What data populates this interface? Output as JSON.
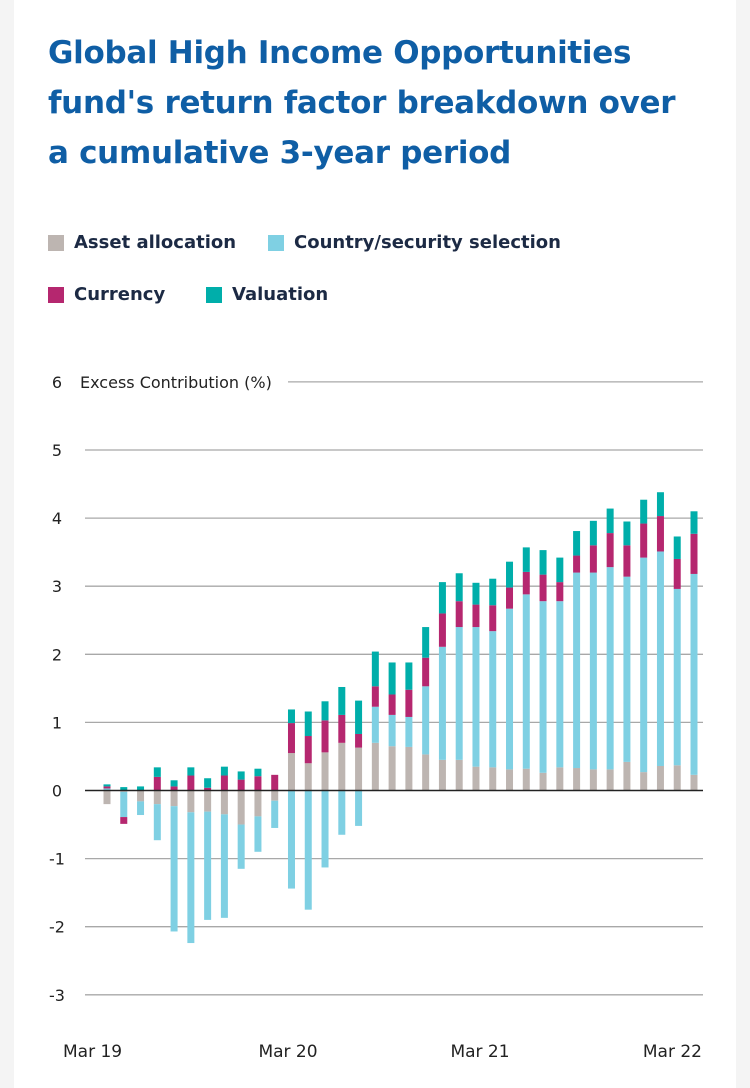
{
  "title": "Global High Income Opportunities fund's return factor breakdown over a cumulative 3-year period",
  "colors": {
    "title": "#0f5ea5",
    "asset_allocation": "#bdb5b1",
    "country_security_selection": "#7fd0e3",
    "currency": "#b5276f",
    "valuation": "#00aeaa"
  },
  "chart_data": {
    "type": "bar",
    "stacked": true,
    "title": "Global High Income Opportunities fund's return factor breakdown over a cumulative 3-year period",
    "ylabel": "Excess Contribution (%)",
    "ylim": [
      -3,
      6
    ],
    "yticks": [
      "6",
      "5",
      "4",
      "3",
      "2",
      "1",
      "0",
      "-1",
      "-2",
      "-3"
    ],
    "xticks": [
      "Mar 19",
      "Mar 20",
      "Mar 21",
      "Mar 22"
    ],
    "grid": true,
    "legend_placement": "top",
    "series": [
      {
        "name": "Asset allocation",
        "values": [
          -0.2,
          -0.02,
          -0.16,
          -0.2,
          -0.23,
          -0.32,
          -0.31,
          -0.35,
          -0.5,
          -0.38,
          -0.15,
          0.55,
          0.4,
          0.56,
          0.7,
          0.63,
          0.7,
          0.65,
          0.64,
          0.53,
          0.45,
          0.45,
          0.35,
          0.34,
          0.31,
          0.32,
          0.26,
          0.34,
          0.33,
          0.31,
          0.31,
          0.42,
          0.27,
          0.36,
          0.37,
          0.23
        ]
      },
      {
        "name": "Country/security selection",
        "values": [
          0.03,
          -0.37,
          -0.2,
          -0.53,
          -1.84,
          -1.92,
          -1.59,
          -1.52,
          -0.65,
          -0.52,
          -0.4,
          -1.44,
          -1.75,
          -1.13,
          -0.65,
          -0.52,
          0.53,
          0.46,
          0.44,
          1.0,
          1.66,
          1.95,
          2.05,
          2.0,
          2.36,
          2.56,
          2.52,
          2.44,
          2.87,
          2.89,
          2.97,
          2.72,
          3.15,
          3.15,
          2.59,
          2.95
        ]
      },
      {
        "name": "Currency",
        "values": [
          0.03,
          -0.1,
          0,
          0.2,
          0.06,
          0.22,
          0.04,
          0.22,
          0.16,
          0.21,
          0.23,
          0.44,
          0.4,
          0.47,
          0.41,
          0.2,
          0.3,
          0.3,
          0.4,
          0.42,
          0.49,
          0.38,
          0.33,
          0.38,
          0.31,
          0.33,
          0.39,
          0.28,
          0.25,
          0.4,
          0.5,
          0.46,
          0.5,
          0.52,
          0.44,
          0.59
        ]
      },
      {
        "name": "Valuation",
        "values": [
          0.03,
          0.05,
          0.06,
          0.14,
          0.09,
          0.12,
          0.14,
          0.13,
          0.12,
          0.11,
          0,
          0.2,
          0.36,
          0.28,
          0.41,
          0.49,
          0.51,
          0.47,
          0.4,
          0.45,
          0.46,
          0.41,
          0.32,
          0.39,
          0.38,
          0.36,
          0.36,
          0.36,
          0.36,
          0.36,
          0.36,
          0.35,
          0.35,
          0.35,
          0.33,
          0.33
        ]
      }
    ]
  }
}
